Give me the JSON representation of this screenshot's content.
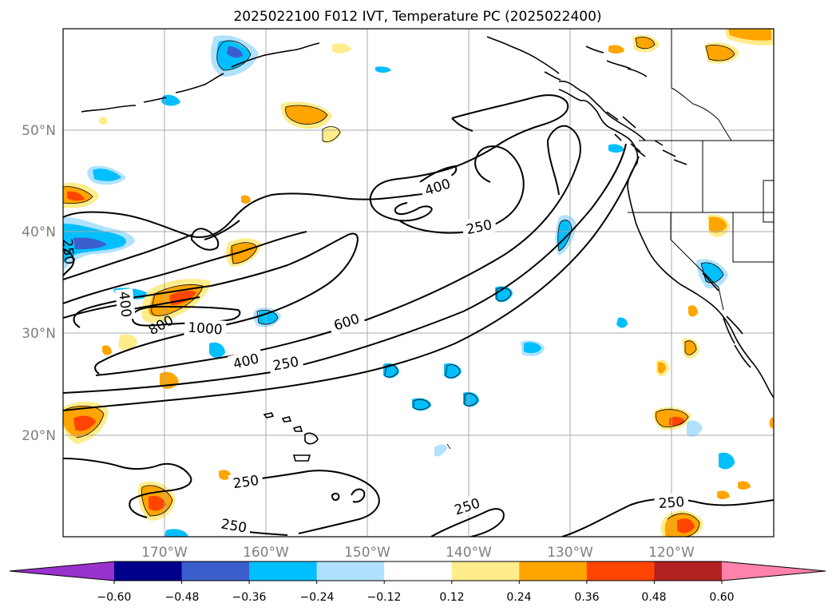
{
  "title": "2025022100 F012 IVT, Temperature PC (2025022400)",
  "map": {
    "lat_labels": [
      "50°N",
      "40°N",
      "30°N",
      "20°N"
    ],
    "lon_labels": [
      "170°W",
      "160°W",
      "150°W",
      "140°W",
      "130°W",
      "120°W"
    ],
    "ivt_contour_labels": [
      "400",
      "250",
      "400",
      "800",
      "1000",
      "600",
      "400",
      "250",
      "250",
      "250",
      "250",
      "250",
      "250"
    ],
    "gridlines": true,
    "coastlines": true,
    "state_borders": true
  },
  "colorbar": {
    "tick_labels": [
      "−0.60",
      "−0.48",
      "−0.36",
      "−0.24",
      "−0.12",
      "0.12",
      "0.24",
      "0.36",
      "0.48",
      "0.60"
    ],
    "colors": [
      "#9932cc",
      "#00008b",
      "#3a5fcd",
      "#00bfff",
      "#b0e2ff",
      "#ffffff",
      "#ffec8b",
      "#ffa500",
      "#ff4500",
      "#b22222",
      "#ff82ab"
    ],
    "extend": "both"
  }
}
